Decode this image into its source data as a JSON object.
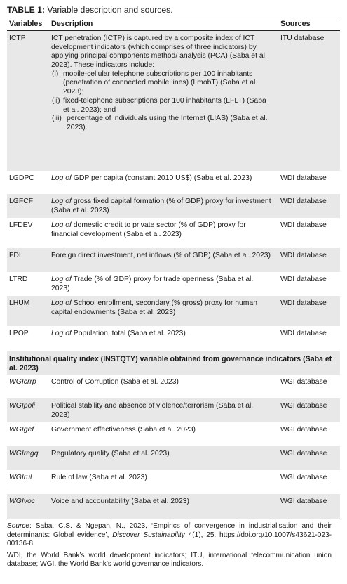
{
  "title": {
    "prefix": "TABLE 1:",
    "text": " Variable description and sources."
  },
  "header": {
    "variables": "Variables",
    "description": "Description",
    "sources": "Sources"
  },
  "rows": [
    {
      "var": "ICTP",
      "desc": "ICT penetration (ICTP) is captured by a composite index of ICT development indicators (which comprises of three indicators) by applying principal components method/ analysis (PCA) (Saba et al. 2023). These indicators include:",
      "items": [
        {
          "num": "(i)",
          "text": "mobile-cellular telephone subscriptions per 100 inhabitants (penetration of connected mobile lines) (LmobT) (Saba et al. 2023);"
        },
        {
          "num": "(ii)",
          "text": "fixed-telephone subscriptions per 100 inhabitants (LFLT) (Saba et al. 2023); and"
        },
        {
          "num": "(iii)",
          "text": "percentage of individuals using the Internet (LIAS) (Saba et al. 2023)."
        }
      ],
      "source": "ITU database"
    },
    {
      "var": "LGDPC",
      "lead": "Log of",
      "desc": " GDP per capita (constant 2010 US$) (Saba et al. 2023)",
      "source": "WDI database"
    },
    {
      "var": "LGFCF",
      "lead": "Log of",
      "desc": " gross fixed capital formation (% of GDP) proxy for investment (Saba et al. 2023)",
      "source": "WDI database"
    },
    {
      "var": "LFDEV",
      "lead": "Log of",
      "desc": " domestic credit to private sector (% of GDP) proxy for financial development (Saba et al. 2023)",
      "source": "WDI database"
    },
    {
      "var": "FDI",
      "desc": "Foreign direct investment, net inflows (% of GDP) (Saba et al. 2023)",
      "source": "WDI database"
    },
    {
      "var": "LTRD",
      "lead": "Log of",
      "desc": " Trade (% of GDP) proxy for trade openness (Saba et al. 2023)",
      "source": "WDI database"
    },
    {
      "var": "LHUM",
      "lead": "Log of",
      "desc": " School enrollment, secondary (% gross) proxy for human capital endowments (Saba et al. 2023)",
      "source": "WDI database"
    },
    {
      "var": "LPOP",
      "lead": "Log of",
      "desc": " Population, total (Saba et al. 2023)",
      "source": "WDI database"
    }
  ],
  "section": "Institutional quality index (INSTQTY) variable obtained from governance indicators (Saba et al. 2023)",
  "gov_rows": [
    {
      "var": "WGIcrrp",
      "desc": "Control of Corruption (Saba et al. 2023)",
      "source": "WGI database"
    },
    {
      "var": "WGIpoli",
      "desc": "Political stability and absence of violence/terrorism (Saba et al. 2023)",
      "source": "WGI database"
    },
    {
      "var": "WGIgef",
      "desc": "Government effectiveness (Saba et al. 2023)",
      "source": "WGI database"
    },
    {
      "var": "WGIregq",
      "desc": "Regulatory quality (Saba et al. 2023)",
      "source": "WGI database"
    },
    {
      "var": "WGIrul",
      "desc": "Rule of law (Saba et al. 2023)",
      "source": "WGI database"
    },
    {
      "var": "WGIvoc",
      "desc": "Voice and accountability (Saba et al. 2023)",
      "source": "WGI database"
    }
  ],
  "notes": {
    "source_label": "Source",
    "source_text": ": Saba, C.S. & Ngepah, N., 2023, ‘Empirics of convergence in industrialisation and their determinants: Global evidence’, ",
    "source_journal": "Discover Sustainability",
    "source_tail": " 4(1), 25. https://doi.org/10.1007/s43621-023-00136-8",
    "abbrev": "WDI, the World Bank’s world development indicators; ITU, international telecommunication union database; WGI, the World Bank’s world governance indicators."
  }
}
